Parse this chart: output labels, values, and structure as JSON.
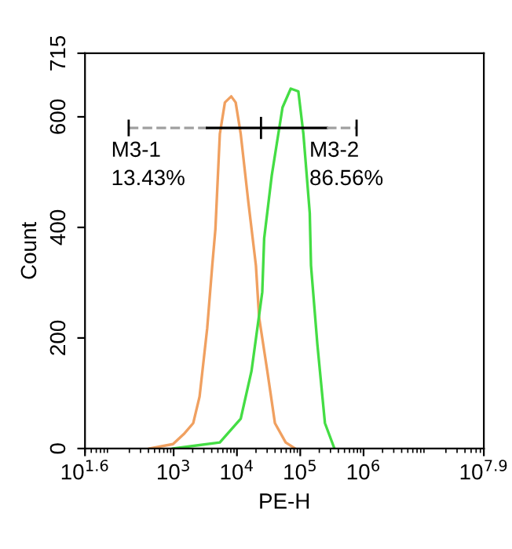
{
  "chart_data": {
    "type": "line",
    "xlabel": "PE-H",
    "ylabel": "Count",
    "log": "x",
    "grid": false,
    "legend": false,
    "marker": "none",
    "line_style": "solid",
    "xlim": [
      39.81,
      79430000
    ],
    "xticks": [
      {
        "value": 39.81,
        "label": "10$^{1.6}$"
      },
      {
        "value": 1000,
        "label": "10$^{3}$"
      },
      {
        "value": 10000,
        "label": "10$^{4}$"
      },
      {
        "value": 100000,
        "label": "10$^{5}$"
      },
      {
        "value": 1000000,
        "label": "10$^{6}$"
      },
      {
        "value": 79430000,
        "label": "10$^{7.9}$"
      }
    ],
    "ylim": [
      0,
      715
    ],
    "yticks": [
      0,
      200,
      400,
      600,
      715
    ],
    "series": [
      {
        "color": "#f0a060",
        "x": [
          417,
          977,
          1445,
          2042,
          2570,
          3388,
          4074,
          4571,
          5370,
          6457,
          8128,
          9550,
          11480,
          15140,
          19950,
          22390,
          30200,
          39810,
          58880,
          83180
        ],
        "values": [
          0,
          8,
          26,
          46,
          94,
          217,
          331,
          397,
          569,
          626,
          637,
          626,
          569,
          446,
          331,
          237,
          140,
          46,
          11,
          0
        ]
      },
      {
        "color": "#44dd44",
        "x": [
          977,
          5370,
          11480,
          16980,
          25120,
          26920,
          35480,
          52480,
          70790,
          93330,
          112200,
          141300,
          147900,
          186200,
          245500,
          346700
        ],
        "values": [
          0,
          11,
          54,
          140,
          283,
          380,
          494,
          617,
          651,
          646,
          569,
          426,
          331,
          189,
          46,
          0
        ]
      },
      {
        "name": "M3-1",
        "color": "#a0a0a0",
        "line_style": "dashed",
        "x": [
          195,
          3388
        ],
        "values": [
          580,
          580
        ],
        "errors": [
          15,
          null
        ]
      },
      {
        "color": "#000000",
        "x": [
          3388,
          23990,
          263000
        ],
        "values": [
          580,
          580,
          580
        ],
        "errors": [
          null,
          20,
          null
        ]
      },
      {
        "name": "M3-2",
        "color": "#a0a0a0",
        "line_style": "dashed",
        "x": [
          263000,
          776200
        ],
        "values": [
          580,
          580
        ],
        "errors": [
          null,
          15
        ]
      }
    ],
    "annotations": [
      {
        "text": "13.43%",
        "x": 195,
        "y": 580
      },
      {
        "text": "86.56%",
        "x": 263000,
        "y": 580
      }
    ]
  }
}
